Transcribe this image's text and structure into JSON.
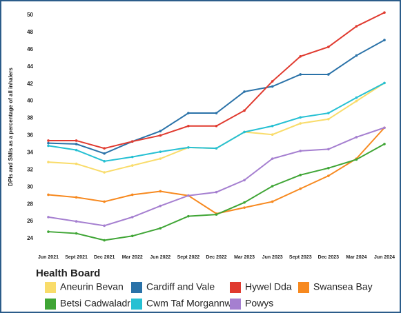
{
  "chart_data": {
    "type": "line",
    "y_label": "DPIs and SMIs as a percentage of all inhalers",
    "legend_title": "Health Board",
    "categories": [
      "Jun 2021",
      "Sept 2021",
      "Dec 2021",
      "Mar 2022",
      "Jun 2022",
      "Sept 2022",
      "Dec 2022",
      "Mar 2023",
      "Jun 2023",
      "Sept 2023",
      "Dec 2023",
      "Mar 2024",
      "Jun 2024"
    ],
    "series": [
      {
        "name": "Aneurin Bevan",
        "color": "#f9dc6a",
        "values": [
          32.9,
          32.7,
          31.7,
          32.5,
          33.3,
          34.6,
          34.5,
          36.4,
          36.1,
          37.4,
          37.9,
          40.0,
          42.1
        ]
      },
      {
        "name": "Cardiff and Vale",
        "color": "#2a72a8",
        "values": [
          35.1,
          35.0,
          33.9,
          35.3,
          36.5,
          38.6,
          38.6,
          41.1,
          41.7,
          43.1,
          43.1,
          45.3,
          47.1
        ]
      },
      {
        "name": "Hywel Dda",
        "color": "#e03a2f",
        "values": [
          35.4,
          35.4,
          34.5,
          35.3,
          36.0,
          37.1,
          37.1,
          38.9,
          42.3,
          45.2,
          46.3,
          48.7,
          50.3
        ]
      },
      {
        "name": "Swansea Bay",
        "color": "#f7891f",
        "values": [
          29.1,
          28.8,
          28.3,
          29.1,
          29.5,
          29.0,
          26.9,
          27.6,
          28.3,
          29.8,
          31.3,
          33.3,
          36.9
        ]
      },
      {
        "name": "Betsi Cadwaladr",
        "color": "#3fa535",
        "values": [
          24.8,
          24.6,
          23.8,
          24.3,
          25.2,
          26.6,
          26.8,
          28.2,
          30.1,
          31.4,
          32.2,
          33.2,
          35.0
        ]
      },
      {
        "name": "Cwm Taf Morgannwg",
        "color": "#26c0d3",
        "values": [
          34.8,
          34.3,
          33.0,
          33.5,
          34.1,
          34.6,
          34.5,
          36.4,
          37.1,
          38.1,
          38.6,
          40.4,
          42.1
        ]
      },
      {
        "name": "Powys",
        "color": "#a57fd0",
        "values": [
          26.5,
          26.0,
          25.5,
          26.5,
          27.8,
          29.0,
          29.4,
          30.8,
          33.3,
          34.2,
          34.4,
          35.8,
          36.9
        ]
      }
    ],
    "ylim": [
      23,
      51
    ],
    "yticks": [
      24,
      26,
      28,
      30,
      32,
      34,
      36,
      38,
      40,
      42,
      44,
      46,
      48,
      50
    ]
  }
}
